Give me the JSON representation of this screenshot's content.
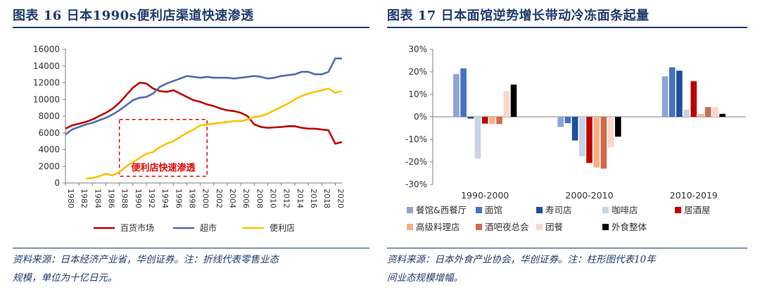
{
  "left": {
    "title": "图表 16   日本1990s便利店渠道快速渗透",
    "source": "资料来源：日本经济产业省，华创证券。注：折线代表零售业态规模，单位为十亿日元。",
    "source_line1": "资料来源：日本经济产业省，华创证券。注：折线代表零售业态",
    "source_line2": "规模，单位为十亿日元。"
  },
  "right": {
    "title": "图表 17   日本面馆逆势增长带动冷冻面条起量",
    "source": "资料来源：日本外食产业协会，华创证券。注：柱形图代表10年间业态规模增幅。",
    "source_line1": "资料来源：日本外食产业协会，华创证券。注：柱形图代表10年",
    "source_line2": "间业态规模增幅。"
  },
  "chart_data": [
    {
      "type": "line",
      "title": "日本1990s便利店渠道快速渗透",
      "unit": "十亿日元",
      "ylim": [
        0,
        16000
      ],
      "yticks": [
        0,
        2000,
        4000,
        6000,
        8000,
        10000,
        12000,
        14000,
        16000
      ],
      "xlim": [
        1980,
        2021
      ],
      "xticks": [
        1980,
        1982,
        1984,
        1986,
        1988,
        1990,
        1992,
        1994,
        1996,
        1998,
        2000,
        2002,
        2004,
        2006,
        2008,
        2010,
        2012,
        2014,
        2016,
        2018,
        2020
      ],
      "annotation": "便利店快速渗透",
      "annotation_range": [
        1988,
        2001
      ],
      "series": [
        {
          "name": "百货市场",
          "color": "#c00000",
          "x": [
            1980,
            1981,
            1982,
            1983,
            1984,
            1985,
            1986,
            1987,
            1988,
            1989,
            1990,
            1991,
            1992,
            1993,
            1994,
            1995,
            1996,
            1997,
            1998,
            1999,
            2000,
            2001,
            2002,
            2003,
            2004,
            2005,
            2006,
            2007,
            2008,
            2009,
            2010,
            2011,
            2012,
            2013,
            2014,
            2015,
            2016,
            2017,
            2018,
            2019,
            2020,
            2021
          ],
          "y": [
            6500,
            6900,
            7100,
            7300,
            7600,
            8000,
            8400,
            8900,
            9600,
            10500,
            11400,
            12000,
            11900,
            11300,
            11000,
            10900,
            11100,
            10700,
            10300,
            9900,
            9700,
            9400,
            9200,
            8900,
            8700,
            8600,
            8400,
            8000,
            7000,
            6700,
            6600,
            6650,
            6700,
            6800,
            6800,
            6600,
            6500,
            6500,
            6400,
            6300,
            4700,
            4900
          ]
        },
        {
          "name": "超市",
          "color": "#4f6eae",
          "x": [
            1980,
            1981,
            1982,
            1983,
            1984,
            1985,
            1986,
            1987,
            1988,
            1989,
            1990,
            1991,
            1992,
            1993,
            1994,
            1995,
            1996,
            1997,
            1998,
            1999,
            2000,
            2001,
            2002,
            2003,
            2004,
            2005,
            2006,
            2007,
            2008,
            2009,
            2010,
            2011,
            2012,
            2013,
            2014,
            2015,
            2016,
            2017,
            2018,
            2019,
            2020,
            2021
          ],
          "y": [
            5800,
            6400,
            6700,
            7000,
            7200,
            7500,
            7800,
            8200,
            8700,
            9300,
            9900,
            10200,
            10300,
            10700,
            11500,
            11900,
            12200,
            12500,
            12800,
            12700,
            12600,
            12700,
            12600,
            12600,
            12600,
            12500,
            12600,
            12700,
            12800,
            12700,
            12500,
            12600,
            12800,
            12900,
            13000,
            13300,
            13300,
            13000,
            13000,
            13300,
            14900,
            14900
          ]
        },
        {
          "name": "便利店",
          "color": "#ffc000",
          "x": [
            1983,
            1984,
            1985,
            1986,
            1987,
            1988,
            1989,
            1990,
            1991,
            1992,
            1993,
            1994,
            1995,
            1996,
            1997,
            1998,
            1999,
            2000,
            2001,
            2002,
            2003,
            2004,
            2005,
            2006,
            2007,
            2008,
            2009,
            2010,
            2011,
            2012,
            2013,
            2014,
            2015,
            2016,
            2017,
            2018,
            2019,
            2020,
            2021
          ],
          "y": [
            500,
            600,
            800,
            1100,
            900,
            1300,
            2000,
            2500,
            3000,
            3500,
            3700,
            4300,
            4700,
            5000,
            5500,
            6000,
            6400,
            6900,
            7000,
            7100,
            7200,
            7300,
            7400,
            7400,
            7600,
            7900,
            8000,
            8300,
            8700,
            9100,
            9500,
            10000,
            10400,
            10700,
            10900,
            11100,
            11300,
            10800,
            11000
          ]
        }
      ]
    },
    {
      "type": "bar",
      "title": "日本面馆逆势增长带动冷冻面条起量",
      "ylim": [
        -30,
        30
      ],
      "yticks": [
        "30%",
        "20%",
        "10%",
        "0%",
        "-10%",
        "-20%",
        "-30%"
      ],
      "categories": [
        "1990-2000",
        "2000-2010",
        "2010-2019"
      ],
      "series": [
        {
          "name": "餐馆&西餐厅",
          "color": "#8fa4d6",
          "values": [
            19,
            -4.5,
            18
          ]
        },
        {
          "name": "面馆",
          "color": "#4472c4",
          "values": [
            21.5,
            -2.8,
            22
          ]
        },
        {
          "name": "寿司店",
          "color": "#1f4e9c",
          "values": [
            -0.8,
            -10.5,
            20.5
          ]
        },
        {
          "name": "咖啡店",
          "color": "#c9d3ea",
          "values": [
            -18.5,
            -17.5,
            3.2
          ]
        },
        {
          "name": "居酒屋",
          "color": "#c00000",
          "values": [
            -3,
            -20.5,
            15.8
          ]
        },
        {
          "name": "高级料理店",
          "color": "#f4b183",
          "values": [
            -3.2,
            -22.5,
            1.2
          ]
        },
        {
          "name": "酒吧夜总会",
          "color": "#d2694a",
          "values": [
            -3.2,
            -23,
            4.3
          ]
        },
        {
          "name": "团餐",
          "color": "#f8d8c8",
          "values": [
            11.5,
            -13.5,
            4.3
          ]
        },
        {
          "name": "外食整体",
          "color": "#000000",
          "values": [
            14.3,
            -8.8,
            1.3
          ]
        }
      ]
    }
  ]
}
